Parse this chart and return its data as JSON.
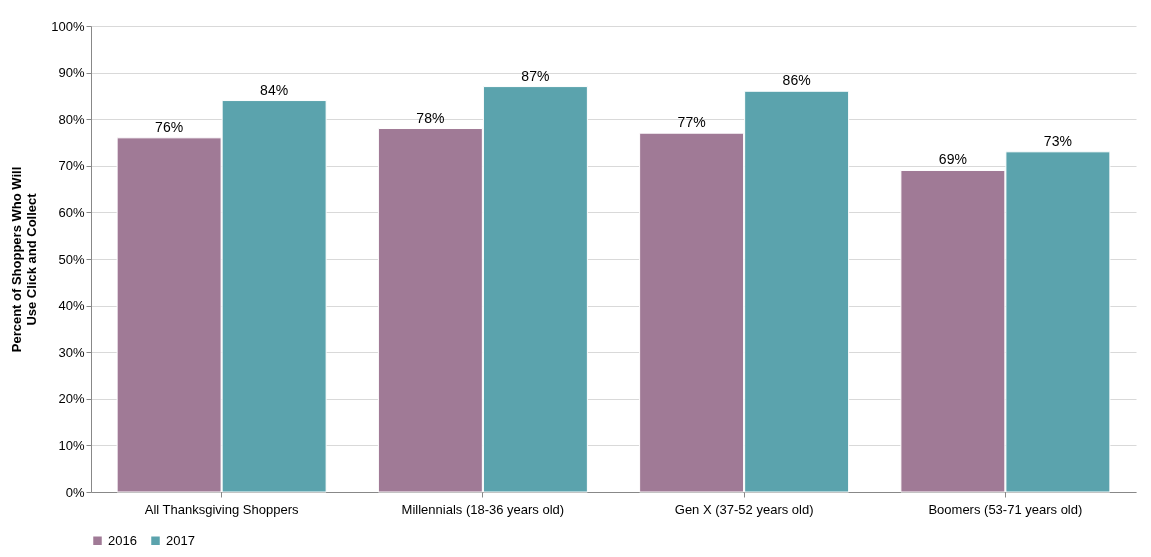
{
  "chart_data": {
    "type": "bar",
    "ylabel": "Percent of Shoppers Who Will\nUse Click and Collect",
    "categories": [
      "All Thanksgiving Shoppers",
      "Millennials (18-36 years old)",
      "Gen X (37-52 years old)",
      "Boomers (53-71 years old)"
    ],
    "series": [
      {
        "name": "2016",
        "color": "#a07a96",
        "values": [
          76,
          78,
          77,
          69
        ],
        "value_labels": [
          "76%",
          "78%",
          "77%",
          "69%"
        ]
      },
      {
        "name": "2017",
        "color": "#5ba3ad",
        "values": [
          84,
          87,
          86,
          73
        ],
        "value_labels": [
          "84%",
          "87%",
          "86%",
          "73%"
        ]
      }
    ],
    "ylim": [
      0,
      100
    ],
    "yticks": [
      {
        "value": 0,
        "label": "0%"
      },
      {
        "value": 10,
        "label": "10%"
      },
      {
        "value": 20,
        "label": "20%"
      },
      {
        "value": 30,
        "label": "30%"
      },
      {
        "value": 40,
        "label": "40%"
      },
      {
        "value": 50,
        "label": "50%"
      },
      {
        "value": 60,
        "label": "60%"
      },
      {
        "value": 70,
        "label": "70%"
      },
      {
        "value": 80,
        "label": "80%"
      },
      {
        "value": 90,
        "label": "90%"
      },
      {
        "value": 100,
        "label": "100%"
      }
    ],
    "grid": "y",
    "legend": "bottom"
  }
}
